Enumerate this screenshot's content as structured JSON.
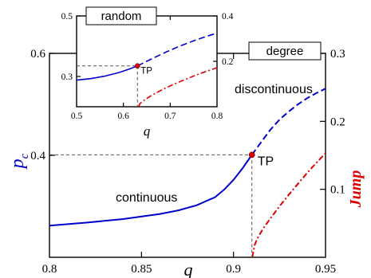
{
  "chart_data": [
    {
      "type": "line",
      "panel": "main",
      "box_label": "degree",
      "xlabel": "q",
      "ylabel_left": "p",
      "ylabel_left_sub": "c",
      "ylabel_right": "Jump",
      "xlim": [
        0.8,
        0.95
      ],
      "ylim_left": [
        0.2,
        0.6
      ],
      "ylim_right": [
        0.0,
        0.3
      ],
      "xticks": [
        "0.8",
        "0.85",
        "0.9",
        "0.95"
      ],
      "xtick_values": [
        0.8,
        0.85,
        0.9,
        0.95
      ],
      "yticks_left": [
        "0.4",
        "0.6"
      ],
      "ytick_left_values": [
        0.4,
        0.6
      ],
      "yticks_right": [
        "0.1",
        "0.2",
        "0.3"
      ],
      "ytick_right_values": [
        0.1,
        0.2,
        0.3
      ],
      "colors": {
        "pc": "#0000cc",
        "jump": "#dd0000",
        "tp": "#dd0000",
        "guide": "#555555"
      },
      "series": [
        {
          "axis": "left",
          "style": "solid",
          "x": [
            0.8,
            0.82,
            0.84,
            0.86,
            0.87,
            0.88,
            0.89,
            0.895,
            0.9,
            0.905,
            0.91
          ],
          "y": [
            0.262,
            0.268,
            0.275,
            0.285,
            0.292,
            0.302,
            0.318,
            0.333,
            0.352,
            0.375,
            0.401
          ]
        },
        {
          "axis": "left",
          "style": "dashed",
          "x": [
            0.91,
            0.915,
            0.92,
            0.925,
            0.93,
            0.935,
            0.94,
            0.945,
            0.95
          ],
          "y": [
            0.401,
            0.426,
            0.45,
            0.47,
            0.486,
            0.5,
            0.512,
            0.522,
            0.531
          ]
        },
        {
          "axis": "right",
          "style": "dashdot",
          "x": [
            0.9102,
            0.9115,
            0.913,
            0.916,
            0.92,
            0.925,
            0.93,
            0.935,
            0.94,
            0.945,
            0.95
          ],
          "y": [
            0.0,
            0.018,
            0.028,
            0.042,
            0.057,
            0.075,
            0.092,
            0.108,
            0.124,
            0.139,
            0.153
          ]
        }
      ],
      "tp": {
        "x": 0.91,
        "y": 0.401,
        "label": "TP"
      },
      "annotations": {
        "continuous": "continuous",
        "discontinuous": "discontinuous"
      }
    },
    {
      "type": "line",
      "panel": "inset",
      "box_label": "random",
      "xlabel": "q",
      "xlim": [
        0.5,
        0.8
      ],
      "ylim_left": [
        0.2,
        0.5
      ],
      "ylim_right": [
        0.0,
        0.4
      ],
      "xticks": [
        "0.5",
        "0.6",
        "0.7",
        "0.8"
      ],
      "xtick_values": [
        0.5,
        0.6,
        0.7,
        0.8
      ],
      "yticks_left": [
        "0.3",
        "0.5"
      ],
      "ytick_left_values": [
        0.3,
        0.5
      ],
      "yticks_right": [
        "0.2",
        "0.4"
      ],
      "ytick_right_values": [
        0.2,
        0.4
      ],
      "series": [
        {
          "axis": "left",
          "style": "solid",
          "x": [
            0.5,
            0.53,
            0.56,
            0.59,
            0.61,
            0.63
          ],
          "y": [
            0.288,
            0.293,
            0.301,
            0.313,
            0.323,
            0.335
          ]
        },
        {
          "axis": "left",
          "style": "dashed",
          "x": [
            0.63,
            0.66,
            0.69,
            0.72,
            0.75,
            0.78,
            0.8
          ],
          "y": [
            0.335,
            0.358,
            0.38,
            0.4,
            0.418,
            0.434,
            0.443
          ]
        },
        {
          "axis": "right",
          "style": "dashdot",
          "x": [
            0.632,
            0.636,
            0.645,
            0.66,
            0.68,
            0.7,
            0.72,
            0.74,
            0.76,
            0.78,
            0.8
          ],
          "y": [
            0.0,
            0.015,
            0.03,
            0.05,
            0.072,
            0.092,
            0.11,
            0.127,
            0.143,
            0.158,
            0.172
          ]
        }
      ],
      "tp": {
        "x": 0.63,
        "y": 0.335,
        "label": "TP"
      }
    }
  ]
}
